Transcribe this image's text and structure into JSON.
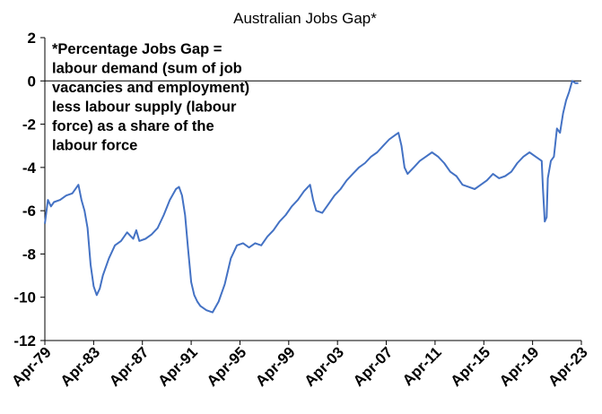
{
  "chart_data": {
    "type": "line",
    "title": "Australian Jobs Gap*",
    "xlabel": "",
    "ylabel": "",
    "ylim": [
      -12,
      2
    ],
    "yticks": [
      2,
      0,
      -2,
      -4,
      -6,
      -8,
      -10,
      -12
    ],
    "xticks": [
      "Apr-79",
      "Apr-83",
      "Apr-87",
      "Apr-91",
      "Apr-95",
      "Apr-99",
      "Apr-03",
      "Apr-07",
      "Apr-11",
      "Apr-15",
      "Apr-19",
      "Apr-23"
    ],
    "xlim": [
      1979.25,
      2023.25
    ],
    "grid": false,
    "annotation": [
      "*Percentage Jobs Gap =",
      "labour demand (sum of job",
      "vacancies and employment)",
      "less labour supply (labour",
      "force) as a share of the",
      "labour force"
    ],
    "series": [
      {
        "color": "#4472C4",
        "x": [
          1979.25,
          1979.5,
          1979.75,
          1980.0,
          1980.5,
          1981.0,
          1981.5,
          1982.0,
          1982.25,
          1982.5,
          1982.75,
          1983.0,
          1983.25,
          1983.5,
          1983.75,
          1984.0,
          1984.5,
          1985.0,
          1985.5,
          1986.0,
          1986.5,
          1986.75,
          1987.0,
          1987.5,
          1988.0,
          1988.5,
          1989.0,
          1989.5,
          1990.0,
          1990.25,
          1990.5,
          1990.75,
          1991.0,
          1991.25,
          1991.5,
          1991.75,
          1992.0,
          1992.5,
          1993.0,
          1993.5,
          1994.0,
          1994.5,
          1995.0,
          1995.5,
          1996.0,
          1996.5,
          1997.0,
          1997.5,
          1998.0,
          1998.5,
          1999.0,
          1999.5,
          2000.0,
          2000.5,
          2001.0,
          2001.25,
          2001.5,
          2002.0,
          2002.5,
          2003.0,
          2003.5,
          2004.0,
          2004.5,
          2005.0,
          2005.5,
          2006.0,
          2006.5,
          2007.0,
          2007.5,
          2008.0,
          2008.25,
          2008.5,
          2008.75,
          2009.0,
          2009.5,
          2010.0,
          2010.5,
          2011.0,
          2011.5,
          2012.0,
          2012.5,
          2013.0,
          2013.5,
          2014.0,
          2014.5,
          2015.0,
          2015.5,
          2016.0,
          2016.5,
          2017.0,
          2017.5,
          2018.0,
          2018.5,
          2019.0,
          2019.5,
          2019.75,
          2020.0,
          2020.1,
          2020.25,
          2020.4,
          2020.5,
          2020.75,
          2021.0,
          2021.25,
          2021.5,
          2021.75,
          2022.0,
          2022.25,
          2022.5,
          2022.75,
          2023.0
        ],
        "values": [
          -6.6,
          -5.5,
          -5.8,
          -5.6,
          -5.5,
          -5.3,
          -5.2,
          -4.8,
          -5.5,
          -6.0,
          -6.8,
          -8.5,
          -9.5,
          -9.9,
          -9.6,
          -9.0,
          -8.2,
          -7.6,
          -7.4,
          -7.0,
          -7.3,
          -6.9,
          -7.4,
          -7.3,
          -7.1,
          -6.8,
          -6.2,
          -5.5,
          -5.0,
          -4.9,
          -5.3,
          -6.2,
          -7.8,
          -9.3,
          -9.9,
          -10.2,
          -10.4,
          -10.6,
          -10.7,
          -10.2,
          -9.4,
          -8.2,
          -7.6,
          -7.5,
          -7.7,
          -7.5,
          -7.6,
          -7.2,
          -6.9,
          -6.5,
          -6.2,
          -5.8,
          -5.5,
          -5.1,
          -4.8,
          -5.5,
          -6.0,
          -6.1,
          -5.7,
          -5.3,
          -5.0,
          -4.6,
          -4.3,
          -4.0,
          -3.8,
          -3.5,
          -3.3,
          -3.0,
          -2.7,
          -2.5,
          -2.4,
          -3.0,
          -4.0,
          -4.3,
          -4.0,
          -3.7,
          -3.5,
          -3.3,
          -3.5,
          -3.8,
          -4.2,
          -4.4,
          -4.8,
          -4.9,
          -5.0,
          -4.8,
          -4.6,
          -4.3,
          -4.5,
          -4.4,
          -4.2,
          -3.8,
          -3.5,
          -3.3,
          -3.5,
          -3.6,
          -3.7,
          -5.0,
          -6.5,
          -6.3,
          -4.5,
          -3.7,
          -3.5,
          -2.2,
          -2.4,
          -1.5,
          -0.9,
          -0.5,
          0.0,
          -0.1,
          -0.1
        ]
      }
    ]
  }
}
